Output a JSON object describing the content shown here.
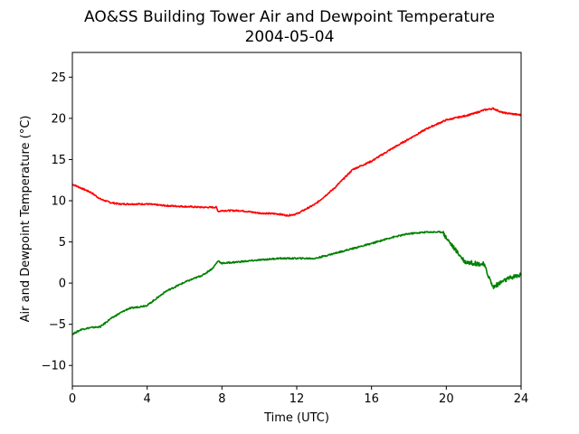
{
  "chart_data": {
    "type": "line",
    "title": "AO&SS Building Tower Air and Dewpoint Temperature",
    "subtitle": "2004-05-04",
    "xlabel": "Time (UTC)",
    "ylabel": "Air and Dewpoint Temperature (°C)",
    "xlim": [
      0,
      24
    ],
    "ylim": [
      -12.5,
      28
    ],
    "xticks": [
      0,
      4,
      8,
      12,
      16,
      20,
      24
    ],
    "yticks": [
      -10,
      -5,
      0,
      5,
      10,
      15,
      20,
      25
    ],
    "grid": false,
    "series": [
      {
        "color": "#ff0000",
        "x": [
          0,
          0.5,
          1,
          1.5,
          2,
          2.5,
          3,
          4,
          5,
          6,
          7,
          7.7,
          7.8,
          8,
          9,
          10,
          11,
          11.5,
          12,
          12.5,
          13,
          14,
          15,
          16,
          17,
          18,
          19,
          20,
          21,
          21.5,
          22,
          22.5,
          23,
          24
        ],
        "y": [
          12,
          11.5,
          11.0,
          10.2,
          9.8,
          9.6,
          9.6,
          9.6,
          9.4,
          9.3,
          9.2,
          9.2,
          8.7,
          8.8,
          8.8,
          8.5,
          8.4,
          8.2,
          8.4,
          9.0,
          9.6,
          11.5,
          13.8,
          14.8,
          16.2,
          17.5,
          18.8,
          19.8,
          20.3,
          20.6,
          21.0,
          21.2,
          20.7,
          20.4
        ]
      },
      {
        "color": "#008000",
        "x": [
          0,
          0.5,
          1,
          1.5,
          2,
          2.5,
          3,
          4,
          5,
          6,
          7,
          7.5,
          7.7,
          7.8,
          8,
          9,
          10,
          11,
          11.5,
          12,
          13,
          14,
          15,
          16,
          17,
          18,
          19,
          19.8,
          20,
          20.5,
          21,
          21.5,
          22,
          22.5,
          23,
          23.5,
          24
        ],
        "y": [
          -6.2,
          -5.6,
          -5.4,
          -5.3,
          -4.4,
          -3.7,
          -3.1,
          -2.7,
          -1.0,
          0.1,
          1.0,
          1.8,
          2.4,
          2.7,
          2.4,
          2.6,
          2.8,
          3.0,
          3.0,
          3.0,
          3.0,
          3.6,
          4.2,
          4.8,
          5.5,
          6.0,
          6.2,
          6.2,
          5.5,
          4.0,
          2.6,
          2.4,
          2.3,
          -0.5,
          0.2,
          0.7,
          1.0
        ]
      }
    ]
  }
}
